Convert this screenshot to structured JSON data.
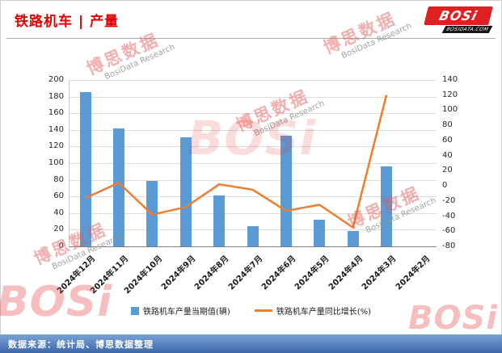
{
  "header": {
    "title": "铁路机车 | 产量"
  },
  "logo": {
    "name": "BOSi",
    "domain": "BOSIDATA.COM"
  },
  "watermark": {
    "cn": "博思数据",
    "en": "BosiData Research",
    "logo": "BOSi"
  },
  "footer": {
    "source": "数据来源：统计局、博思数据整理"
  },
  "chart_data": {
    "type": "bar",
    "title": "铁路机车 | 产量",
    "categories": [
      "2024年12月",
      "2024年11月",
      "2024年10月",
      "2024年9月",
      "2024年8月",
      "2024年7月",
      "2024年6月",
      "2024年5月",
      "2024年4月",
      "2024年3月",
      "2024年2月"
    ],
    "series": [
      {
        "name": "铁路机车产量当期值(辆)",
        "type": "bar",
        "axis": "left",
        "color": "#5B9BD5",
        "values": [
          185,
          142,
          79,
          131,
          61,
          24,
          133,
          32,
          18,
          96,
          null
        ]
      },
      {
        "name": "铁路机车产量同比增长(%)",
        "type": "line",
        "axis": "right",
        "color": "#ED7D31",
        "values": [
          -16,
          4,
          -38,
          -28,
          2,
          -5,
          -33,
          -25,
          -55,
          120,
          null
        ]
      }
    ],
    "axes": {
      "left": {
        "min": 0,
        "max": 200,
        "step": 20
      },
      "right": {
        "min": -80,
        "max": 140,
        "step": 20
      }
    },
    "grid": true,
    "legend_position": "bottom"
  }
}
